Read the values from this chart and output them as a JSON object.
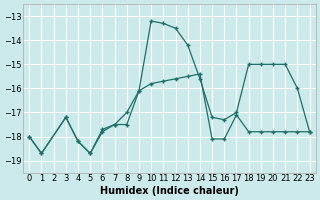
{
  "xlabel": "Humidex (Indice chaleur)",
  "bg_color": "#cce9eb",
  "grid_color": "#ffffff",
  "line_color": "#1e7068",
  "ylim": [
    -19.5,
    -12.5
  ],
  "xlim": [
    -0.5,
    23.5
  ],
  "yticks": [
    -19,
    -18,
    -17,
    -16,
    -15,
    -14,
    -13
  ],
  "xticks": [
    0,
    1,
    2,
    3,
    4,
    5,
    6,
    7,
    8,
    9,
    10,
    11,
    12,
    13,
    14,
    15,
    16,
    17,
    18,
    19,
    20,
    21,
    22,
    23
  ],
  "line1_x": [
    0,
    1,
    3,
    4,
    5,
    6,
    7,
    8,
    9,
    10,
    11,
    12,
    13,
    14,
    15,
    16,
    17,
    18,
    19,
    20,
    21,
    22,
    23
  ],
  "line1_y": [
    -18.0,
    -18.7,
    -17.2,
    -18.2,
    -18.7,
    -17.7,
    -17.5,
    -17.0,
    -16.1,
    -13.2,
    -13.3,
    -13.5,
    -14.2,
    -15.6,
    -17.2,
    -17.3,
    -17.0,
    -15.0,
    -15.0,
    -15.0,
    -15.0,
    -16.0,
    -17.8
  ],
  "line2_x": [
    0,
    1,
    3,
    4,
    5,
    6,
    7,
    8,
    9,
    10,
    11,
    12,
    13,
    14,
    15,
    16,
    17,
    18,
    19,
    20,
    21,
    22,
    23
  ],
  "line2_y": [
    -18.0,
    -18.7,
    -17.2,
    -18.2,
    -18.7,
    -17.8,
    -17.5,
    -17.5,
    -16.1,
    -15.8,
    -15.7,
    -15.6,
    -15.5,
    -15.4,
    -18.1,
    -18.1,
    -17.1,
    -17.8,
    -17.8,
    -17.8,
    -17.8,
    -17.8,
    -17.8
  ]
}
